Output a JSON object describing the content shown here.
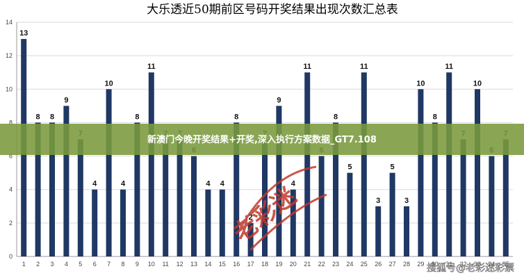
{
  "chart_data": {
    "type": "bar",
    "title": "大乐透近50期前区号码开奖结果出现次数汇总表",
    "xlabel": "",
    "ylabel": "",
    "ylim": [
      0,
      14
    ],
    "yticks": [
      0,
      2,
      4,
      6,
      8,
      10,
      12,
      14
    ],
    "grid": true,
    "legend": "none",
    "bar_color": "#1f3864",
    "categories": [
      "1",
      "2",
      "3",
      "4",
      "5",
      "6",
      "7",
      "8",
      "9",
      "10",
      "11",
      "12",
      "13",
      "14",
      "15",
      "16",
      "17",
      "18",
      "19",
      "20",
      "21",
      "22",
      "23",
      "24",
      "25",
      "26",
      "27",
      "28",
      "29",
      "30",
      "31",
      "32",
      "33",
      "34",
      "35"
    ],
    "values": [
      13,
      8,
      8,
      9,
      7,
      4,
      10,
      4,
      8,
      11,
      7,
      7,
      6,
      4,
      4,
      8,
      2,
      7,
      9,
      4,
      11,
      6,
      8,
      5,
      11,
      3,
      5,
      3,
      10,
      8,
      11,
      7,
      10,
      6,
      7
    ]
  },
  "overlay": {
    "banner_text": "新澳门今晚开奖结果+开奖,深入执行方案数据_GT7.108",
    "banner_color": "#7a9a3c",
    "stamp_text": "老彩迷",
    "stamp_color": "#c0392b",
    "watermark_text": "搜狐号@老彩迷彩票"
  }
}
